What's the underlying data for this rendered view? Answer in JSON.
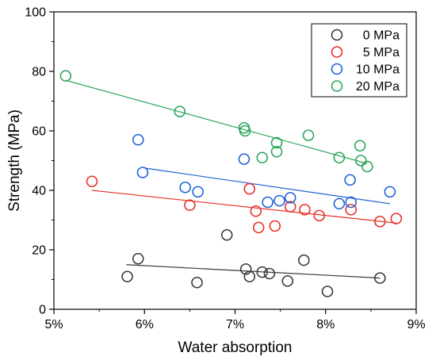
{
  "chart_data": {
    "type": "scatter",
    "xlabel": "Water absorption",
    "ylabel": "Strength (MPa)",
    "xlim": [
      0.05,
      0.09
    ],
    "ylim": [
      0,
      100
    ],
    "x_ticks": [
      0.05,
      0.06,
      0.07,
      0.08,
      0.09
    ],
    "x_tick_labels": [
      "5%",
      "6%",
      "7%",
      "8%",
      "9%"
    ],
    "y_ticks": [
      0,
      20,
      40,
      60,
      80,
      100
    ],
    "y_tick_labels": [
      "0",
      "20",
      "40",
      "60",
      "80",
      "100"
    ],
    "grid": false,
    "legend_position": "top-right",
    "series": [
      {
        "name": "0 MPa",
        "color": "#3a3a3a",
        "x": [
          0.0581,
          0.0593,
          0.0658,
          0.0691,
          0.0712,
          0.0716,
          0.073,
          0.0738,
          0.0758,
          0.0776,
          0.0802,
          0.086
        ],
        "y": [
          11,
          17,
          9,
          25,
          13.5,
          11,
          12.5,
          12,
          9.5,
          16.5,
          6,
          10.5
        ],
        "fit": {
          "x": [
            0.058,
            0.086
          ],
          "y": [
            15.0,
            10.5
          ]
        }
      },
      {
        "name": "5 MPa",
        "color": "#e8302a",
        "x": [
          0.0542,
          0.065,
          0.0716,
          0.0723,
          0.0726,
          0.0744,
          0.0761,
          0.0777,
          0.0793,
          0.0828,
          0.086,
          0.0878
        ],
        "y": [
          43,
          35,
          40.5,
          33,
          27.5,
          28,
          34.5,
          33.5,
          31.5,
          33.5,
          29.5,
          30.5
        ],
        "fit": {
          "x": [
            0.0542,
            0.0878
          ],
          "y": [
            40.0,
            29.0
          ]
        }
      },
      {
        "name": "10 MPa",
        "color": "#1f63d6",
        "x": [
          0.0593,
          0.0598,
          0.0645,
          0.0659,
          0.071,
          0.0736,
          0.0749,
          0.0761,
          0.0815,
          0.0827,
          0.0828,
          0.0871
        ],
        "y": [
          57,
          46,
          41,
          39.5,
          50.5,
          36,
          36.5,
          37.5,
          35.5,
          43.5,
          36,
          39.5
        ],
        "fit": {
          "x": [
            0.06,
            0.0871
          ],
          "y": [
            47.5,
            35.5
          ]
        }
      },
      {
        "name": "20 MPa",
        "color": "#2aa55a",
        "x": [
          0.0513,
          0.0639,
          0.071,
          0.0711,
          0.073,
          0.0746,
          0.0746,
          0.0781,
          0.0815,
          0.0838,
          0.0839,
          0.0846
        ],
        "y": [
          78.5,
          66.5,
          61,
          60,
          51,
          56,
          53,
          58.5,
          51,
          55,
          50,
          48
        ],
        "fit": {
          "x": [
            0.0513,
            0.0846
          ],
          "y": [
            77.0,
            49.0
          ]
        }
      }
    ]
  }
}
